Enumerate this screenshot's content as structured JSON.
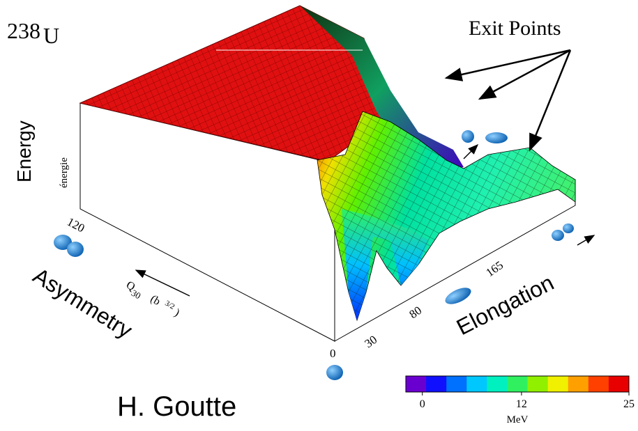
{
  "chart_data": {
    "type": "surface",
    "label": {
      "mass": "238",
      "element": "U"
    },
    "annotation": "Exit Points",
    "z_title": "Energy",
    "z_label": "énergie",
    "y_title": "Asymmetry",
    "y_label": {
      "symbol": "Q",
      "subscript": "30",
      "unit_open": "(b",
      "unit_power": "3/2",
      "unit_close": ")"
    },
    "y_tick_labels": [
      "120",
      "0"
    ],
    "x_title": "Elongation",
    "x_tick_labels": [
      "30",
      "80",
      "165"
    ],
    "author": "H. Goutte",
    "colorbar": {
      "label": "MeV",
      "range": [
        -2,
        25
      ],
      "ticks": [
        0,
        12,
        25
      ],
      "colors": [
        "#6a00d0",
        "#1010ff",
        "#0070ff",
        "#00c8ff",
        "#00f0c0",
        "#30f060",
        "#90f000",
        "#f0f000",
        "#ffa000",
        "#ff4000",
        "#e80000"
      ]
    }
  }
}
